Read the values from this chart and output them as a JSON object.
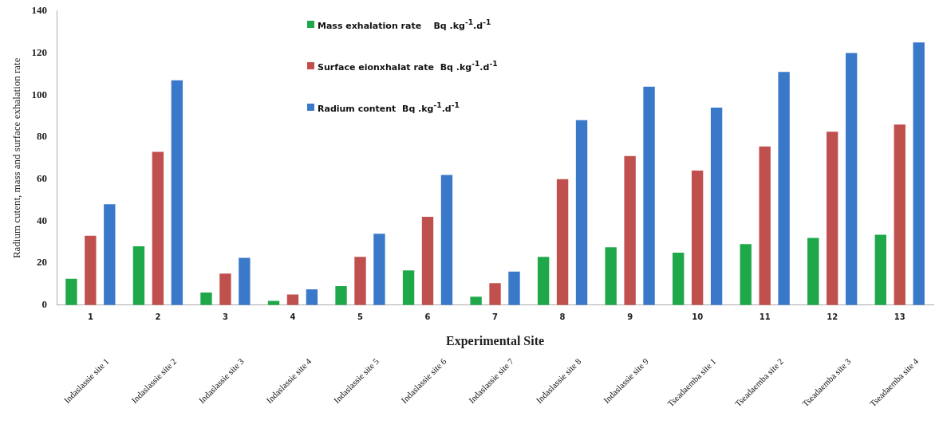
{
  "chart_data": {
    "type": "bar",
    "xlabel": "Experimental Site",
    "ylabel": "Radium cutent, mass and surface exhalation rate",
    "categories": [
      "1",
      "2",
      "3",
      "4",
      "5",
      "6",
      "7",
      "8",
      "9",
      "10",
      "11",
      "12",
      "13"
    ],
    "series": [
      {
        "name": "Mass exhalation rate    Bq .kg$^{-1}$.d$^{-1}$",
        "color": "#1fa84a",
        "values": [
          12.5,
          28,
          6,
          2,
          9,
          16.5,
          4,
          23,
          27.5,
          25,
          29,
          32,
          33.5
        ]
      },
      {
        "name": "Surface eionxhalat rate  Bq .kg$^{-1}$.d$^{-1}$",
        "color": "#c0504d",
        "values": [
          33,
          73,
          15,
          5,
          23,
          42,
          10.5,
          60,
          71,
          64,
          75.5,
          82.5,
          86
        ]
      },
      {
        "name": "Radium content  Bq .kg$^{-1}$.d$^{-1}$",
        "color": "#3a78c9",
        "values": [
          48,
          107,
          22.5,
          7.5,
          34,
          62,
          16,
          88,
          104,
          94,
          111,
          120,
          125
        ]
      }
    ],
    "ylim": [
      0,
      140
    ],
    "yticks": [
      0,
      20,
      40,
      60,
      80,
      100,
      120,
      140
    ],
    "grid": false,
    "legend": "top",
    "annotations": [
      "Indaslassie site 1",
      "Indaslassie site 2",
      "Indaslassie site 3",
      "Indaslassie site 4",
      "Indaslassie site 5",
      "Indaslassie site 6",
      "Indaslassie site 7",
      "Indaslassie site 8",
      "Indaslassie site 9",
      "Tseadaemba site 1",
      "Tseadaemba site 2",
      "Tseadaemba site 3",
      "Tseadaemba site 4"
    ]
  }
}
